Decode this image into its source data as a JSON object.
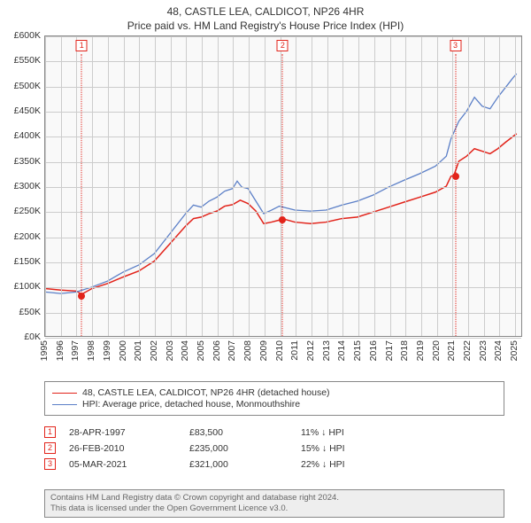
{
  "title_line1": "48, CASTLE LEA, CALDICOT, NP26 4HR",
  "title_line2": "Price paid vs. HM Land Registry's House Price Index (HPI)",
  "chart": {
    "type": "line",
    "background_color": "#f9f9f9",
    "border_color": "#888888",
    "grid_color": "#cccccc",
    "xlim": [
      1995,
      2025.5
    ],
    "ylim": [
      0,
      600000
    ],
    "xtick_step": 1,
    "ytick_step": 50000,
    "y_prefix": "£",
    "y_suffix": "K",
    "x_years": [
      1995,
      1996,
      1997,
      1998,
      1999,
      2000,
      2001,
      2002,
      2003,
      2004,
      2005,
      2006,
      2007,
      2008,
      2009,
      2010,
      2011,
      2012,
      2013,
      2014,
      2015,
      2016,
      2017,
      2018,
      2019,
      2020,
      2021,
      2022,
      2023,
      2024,
      2025
    ],
    "series": [
      {
        "name": "price_paid",
        "label": "48, CASTLE LEA, CALDICOT, NP26 4HR (detached house)",
        "color": "#e2231a",
        "line_width": 1.5,
        "points": [
          [
            1995.0,
            95000
          ],
          [
            1996.0,
            92000
          ],
          [
            1997.0,
            90000
          ],
          [
            1997.33,
            83500
          ],
          [
            1998.0,
            95000
          ],
          [
            1999.0,
            105000
          ],
          [
            2000.0,
            118000
          ],
          [
            2001.0,
            130000
          ],
          [
            2002.0,
            150000
          ],
          [
            2003.0,
            185000
          ],
          [
            2004.0,
            220000
          ],
          [
            2004.5,
            235000
          ],
          [
            2005.0,
            238000
          ],
          [
            2005.5,
            245000
          ],
          [
            2006.0,
            250000
          ],
          [
            2006.5,
            260000
          ],
          [
            2007.0,
            263000
          ],
          [
            2007.5,
            272000
          ],
          [
            2008.0,
            265000
          ],
          [
            2008.5,
            250000
          ],
          [
            2009.0,
            225000
          ],
          [
            2009.5,
            228000
          ],
          [
            2010.0,
            232000
          ],
          [
            2010.16,
            235000
          ],
          [
            2011.0,
            228000
          ],
          [
            2012.0,
            225000
          ],
          [
            2013.0,
            228000
          ],
          [
            2014.0,
            235000
          ],
          [
            2015.0,
            238000
          ],
          [
            2016.0,
            248000
          ],
          [
            2017.0,
            258000
          ],
          [
            2018.0,
            268000
          ],
          [
            2019.0,
            278000
          ],
          [
            2020.0,
            288000
          ],
          [
            2020.7,
            300000
          ],
          [
            2021.0,
            320000
          ],
          [
            2021.18,
            321000
          ],
          [
            2021.5,
            350000
          ],
          [
            2022.0,
            360000
          ],
          [
            2022.5,
            375000
          ],
          [
            2023.0,
            370000
          ],
          [
            2023.5,
            365000
          ],
          [
            2024.0,
            375000
          ],
          [
            2024.5,
            388000
          ],
          [
            2025.0,
            400000
          ],
          [
            2025.2,
            405000
          ]
        ]
      },
      {
        "name": "hpi",
        "label": "HPI: Average price, detached house, Monmouthshire",
        "color": "#5b7fc7",
        "line_width": 1.3,
        "points": [
          [
            1995.0,
            88000
          ],
          [
            1996.0,
            85000
          ],
          [
            1997.0,
            88000
          ],
          [
            1998.0,
            98000
          ],
          [
            1999.0,
            110000
          ],
          [
            2000.0,
            128000
          ],
          [
            2001.0,
            142000
          ],
          [
            2002.0,
            165000
          ],
          [
            2003.0,
            205000
          ],
          [
            2004.0,
            245000
          ],
          [
            2004.5,
            262000
          ],
          [
            2005.0,
            258000
          ],
          [
            2005.5,
            270000
          ],
          [
            2006.0,
            278000
          ],
          [
            2006.5,
            290000
          ],
          [
            2007.0,
            295000
          ],
          [
            2007.3,
            310000
          ],
          [
            2007.6,
            298000
          ],
          [
            2008.0,
            295000
          ],
          [
            2008.5,
            270000
          ],
          [
            2009.0,
            245000
          ],
          [
            2009.5,
            252000
          ],
          [
            2010.0,
            260000
          ],
          [
            2011.0,
            252000
          ],
          [
            2012.0,
            250000
          ],
          [
            2013.0,
            252000
          ],
          [
            2014.0,
            262000
          ],
          [
            2015.0,
            270000
          ],
          [
            2016.0,
            282000
          ],
          [
            2017.0,
            298000
          ],
          [
            2018.0,
            312000
          ],
          [
            2019.0,
            325000
          ],
          [
            2020.0,
            340000
          ],
          [
            2020.7,
            360000
          ],
          [
            2021.0,
            395000
          ],
          [
            2021.5,
            430000
          ],
          [
            2022.0,
            450000
          ],
          [
            2022.5,
            478000
          ],
          [
            2023.0,
            460000
          ],
          [
            2023.5,
            455000
          ],
          [
            2024.0,
            478000
          ],
          [
            2024.5,
            498000
          ],
          [
            2025.0,
            518000
          ],
          [
            2025.2,
            525000
          ]
        ]
      }
    ],
    "sale_markers": [
      {
        "num": "1",
        "x": 1997.33,
        "y": 83500
      },
      {
        "num": "2",
        "x": 2010.16,
        "y": 235000
      },
      {
        "num": "3",
        "x": 2021.18,
        "y": 321000
      }
    ]
  },
  "legend": {
    "border_color": "#888888",
    "items": [
      {
        "color": "#e2231a",
        "label": "48, CASTLE LEA, CALDICOT, NP26 4HR (detached house)"
      },
      {
        "color": "#5b7fc7",
        "label": "HPI: Average price, detached house, Monmouthshire"
      }
    ]
  },
  "sales": [
    {
      "num": "1",
      "date": "28-APR-1997",
      "price": "£83,500",
      "delta": "11% ↓ HPI"
    },
    {
      "num": "2",
      "date": "26-FEB-2010",
      "price": "£235,000",
      "delta": "15% ↓ HPI"
    },
    {
      "num": "3",
      "date": "05-MAR-2021",
      "price": "£321,000",
      "delta": "22% ↓ HPI"
    }
  ],
  "attribution": {
    "line1": "Contains HM Land Registry data © Crown copyright and database right 2024.",
    "line2": "This data is licensed under the Open Government Licence v3.0."
  }
}
